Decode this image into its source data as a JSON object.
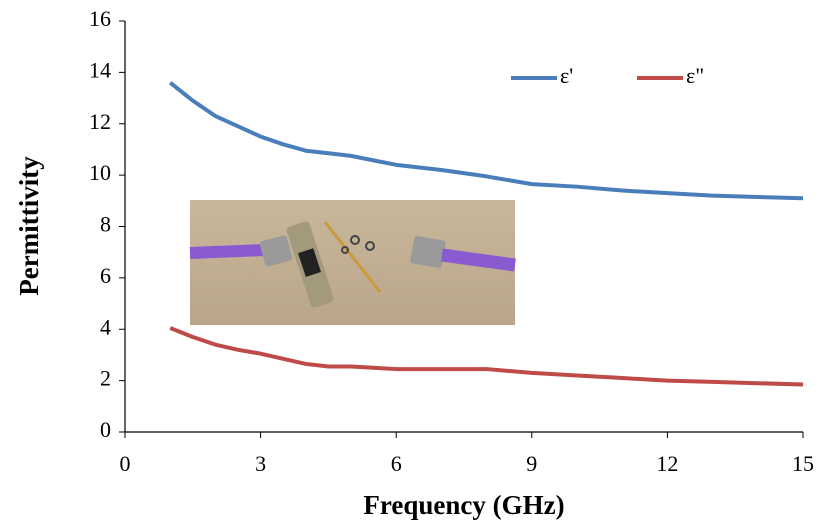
{
  "chart_data": {
    "type": "line",
    "xlabel": "Frequency (GHz)",
    "ylabel": "Permittivity",
    "x": [
      1,
      1.5,
      2,
      2.5,
      3,
      3.5,
      4,
      4.5,
      5,
      6,
      7,
      8,
      9,
      10,
      11,
      12,
      13,
      14,
      15
    ],
    "series": [
      {
        "name": "ε'",
        "color": "#4a7ebb",
        "values": [
          13.6,
          12.9,
          12.3,
          11.9,
          11.5,
          11.2,
          10.95,
          10.85,
          10.75,
          10.4,
          10.2,
          9.95,
          9.65,
          9.55,
          9.4,
          9.3,
          9.2,
          9.15,
          9.1
        ]
      },
      {
        "name": "ε\"",
        "color": "#be4b48",
        "values": [
          4.05,
          3.7,
          3.4,
          3.2,
          3.05,
          2.85,
          2.65,
          2.55,
          2.55,
          2.45,
          2.45,
          2.45,
          2.3,
          2.2,
          2.1,
          2.0,
          1.95,
          1.9,
          1.85
        ]
      }
    ],
    "xlim": [
      0,
      15
    ],
    "xticks": [
      0,
      3,
      6,
      9,
      12,
      15
    ],
    "ylim": [
      0,
      16
    ],
    "yticks": [
      0,
      2,
      4,
      6,
      8,
      10,
      12,
      14,
      16
    ],
    "legend": "upper right"
  }
}
